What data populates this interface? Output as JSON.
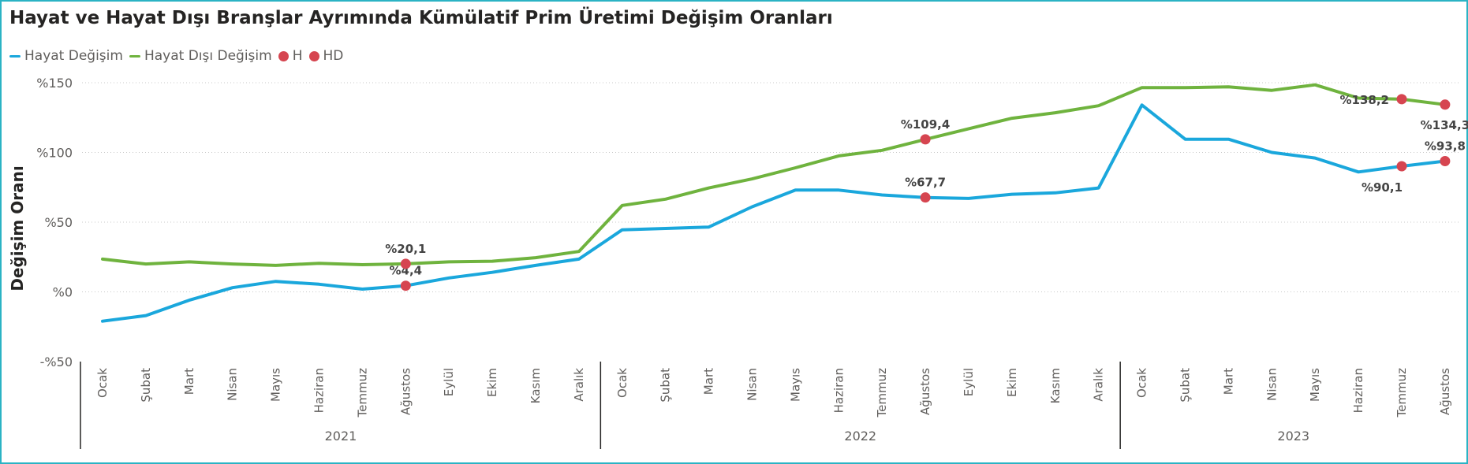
{
  "title": "Hayat ve Hayat Dışı Branşlar Ayrımında Kümülatif Prim Üretimi Değişim Oranları",
  "legend": [
    {
      "label": "Hayat Değişim",
      "kind": "line",
      "color": "#1aa7dc"
    },
    {
      "label": "Hayat Dışı Değişim",
      "kind": "line",
      "color": "#6fb33e"
    },
    {
      "label": "H",
      "kind": "dot",
      "color": "#d64550"
    },
    {
      "label": "HD",
      "kind": "dot",
      "color": "#d64550"
    }
  ],
  "chart_data": {
    "type": "line",
    "title": "Hayat ve Hayat Dışı Branşlar Ayrımında Kümülatif Prim Üretimi Değişim Oranları",
    "ylabel": "Değişim Oranı",
    "xlabel": "",
    "ylim": [
      -50,
      150
    ],
    "yticks": [
      -50,
      0,
      50,
      100,
      150
    ],
    "ytick_labels": [
      "-%50",
      "%0",
      "%50",
      "%100",
      "%150"
    ],
    "grid": "horizontal dotted",
    "legend_position": "top-left",
    "years": [
      {
        "label": "2021",
        "count": 12
      },
      {
        "label": "2022",
        "count": 12
      },
      {
        "label": "2023",
        "count": 8
      }
    ],
    "categories": [
      "Ocak",
      "Şubat",
      "Mart",
      "Nisan",
      "Mayıs",
      "Haziran",
      "Temmuz",
      "Ağustos",
      "Eylül",
      "Ekim",
      "Kasım",
      "Aralık",
      "Ocak",
      "Şubat",
      "Mart",
      "Nisan",
      "Mayıs",
      "Haziran",
      "Temmuz",
      "Ağustos",
      "Eylül",
      "Ekim",
      "Kasım",
      "Aralık",
      "Ocak",
      "Şubat",
      "Mart",
      "Nisan",
      "Mayıs",
      "Haziran",
      "Temmuz",
      "Ağustos"
    ],
    "series": [
      {
        "name": "Hayat Değişim",
        "color": "#1aa7dc",
        "values": [
          -21,
          -17,
          -6,
          3,
          7.5,
          5.5,
          2,
          4.4,
          10,
          14,
          19,
          23.5,
          44.5,
          45.5,
          46.5,
          61,
          73,
          73,
          69.5,
          67.7,
          67,
          70,
          71,
          74.5,
          134,
          109.5,
          109.5,
          100,
          96,
          86,
          90.1,
          93.8
        ]
      },
      {
        "name": "Hayat Dışı Değişim",
        "color": "#6fb33e",
        "values": [
          23.5,
          20,
          21.5,
          20,
          19,
          20.5,
          19.5,
          20.1,
          21.5,
          22,
          24.5,
          29,
          62,
          66.5,
          74.5,
          81,
          89,
          97.5,
          101.5,
          109.4,
          117,
          124.5,
          128.5,
          133.5,
          146.5,
          146.5,
          147,
          144.5,
          148.5,
          139,
          138.2,
          134.3
        ]
      }
    ],
    "markers": [
      {
        "series": "Hayat Değişim",
        "index": 7,
        "label": "%4,4",
        "label_pos": "above"
      },
      {
        "series": "Hayat Dışı Değişim",
        "index": 7,
        "label": "%20,1",
        "label_pos": "above"
      },
      {
        "series": "Hayat Değişim",
        "index": 19,
        "label": "%67,7",
        "label_pos": "above"
      },
      {
        "series": "Hayat Dışı Değişim",
        "index": 19,
        "label": "%109,4",
        "label_pos": "above"
      },
      {
        "series": "Hayat Değişim",
        "index": 30,
        "label": "%90,1",
        "label_pos": "below-left"
      },
      {
        "series": "Hayat Dışı Değişim",
        "index": 30,
        "label": "%138,2",
        "label_pos": "left"
      },
      {
        "series": "Hayat Değişim",
        "index": 31,
        "label": "%93,8",
        "label_pos": "above"
      },
      {
        "series": "Hayat Dışı Değişim",
        "index": 31,
        "label": "%134,3",
        "label_pos": "below"
      }
    ],
    "marker_color": "#d64550"
  }
}
